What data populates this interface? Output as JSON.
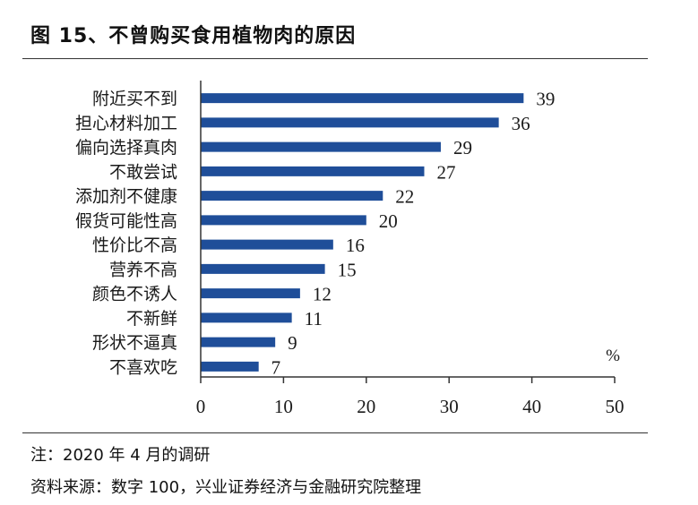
{
  "title": "图 15、不曾购买食用植物肉的原因",
  "chart_data": {
    "type": "bar",
    "orientation": "horizontal",
    "categories": [
      "附近买不到",
      "担心材料加工",
      "偏向选择真肉",
      "不敢尝试",
      "添加剂不健康",
      "假货可能性高",
      "性价比不高",
      "营养不高",
      "颜色不诱人",
      "不新鲜",
      "形状不逼真",
      "不喜欢吃"
    ],
    "values": [
      39,
      36,
      29,
      27,
      22,
      20,
      16,
      15,
      12,
      11,
      9,
      7
    ],
    "xlim": [
      0,
      50
    ],
    "xticks": [
      "0",
      "10",
      "20",
      "30",
      "40",
      "50"
    ],
    "unit": "%",
    "bar_color": "#1f4e99",
    "grid": false
  },
  "footer": {
    "note": "注：2020 年 4 月的调研",
    "source": "资料来源：数字 100，兴业证券经济与金融研究院整理"
  }
}
